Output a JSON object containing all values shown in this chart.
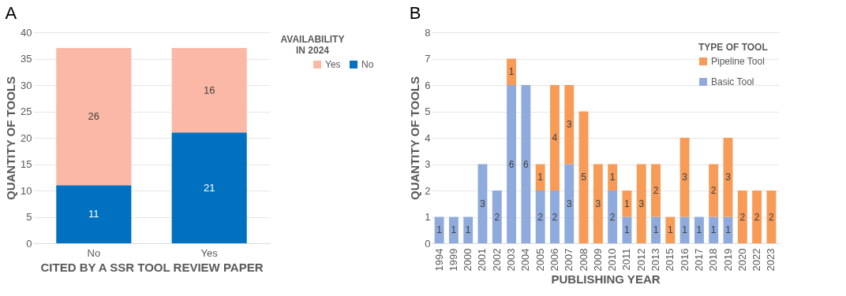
{
  "chart_data": [
    {
      "type": "bar",
      "title": "A",
      "xlabel": "CITED BY A SSR TOOL REVIEW PAPER",
      "ylabel": "QUANTITY OF TOOLS",
      "legend_title": "AVAILABILITY IN 2024",
      "categories": [
        "No",
        "Yes"
      ],
      "stacked": true,
      "series": [
        {
          "name": "No",
          "color": "#0070c0",
          "values": [
            11,
            21
          ]
        },
        {
          "name": "Yes",
          "color": "#fbb8a6",
          "values": [
            26,
            16
          ]
        }
      ],
      "ylim": [
        0,
        40
      ],
      "yticks": [
        0,
        5,
        10,
        15,
        20,
        25,
        30,
        35,
        40
      ],
      "grid": "y",
      "legend": "right",
      "data_labels": true
    },
    {
      "type": "bar",
      "title": "B",
      "xlabel": "PUBLISHING YEAR",
      "ylabel": "QUANTITY OF TOOLS",
      "legend_title": "TYPE OF TOOL",
      "categories": [
        "1994",
        "1999",
        "2000",
        "2001",
        "2002",
        "2003",
        "2004",
        "2005",
        "2006",
        "2007",
        "2008",
        "2009",
        "2010",
        "2011",
        "2012",
        "2013",
        "2015",
        "2016",
        "2017",
        "2018",
        "2019",
        "2020",
        "2022",
        "2023"
      ],
      "stacked": true,
      "series": [
        {
          "name": "Basic Tool",
          "color": "#8faadc",
          "values": [
            1,
            1,
            1,
            3,
            2,
            6,
            6,
            2,
            2,
            3,
            0,
            0,
            2,
            1,
            0,
            1,
            0,
            1,
            1,
            1,
            1,
            0,
            0,
            0
          ],
          "value_labels": [
            "1",
            "1",
            "1",
            "3",
            "2",
            "6",
            "6",
            "2",
            "2",
            "3",
            null,
            null,
            "2",
            "1",
            null,
            "1",
            null,
            "1",
            "1",
            "1",
            "1",
            null,
            null,
            null
          ]
        },
        {
          "name": "Pipeline Tool",
          "color": "#f79b57",
          "values": [
            0,
            0,
            0,
            0,
            0,
            1,
            0,
            1,
            4,
            3,
            5,
            3,
            1,
            1,
            3,
            2,
            1,
            3,
            0,
            2,
            3,
            2,
            2,
            2
          ],
          "value_labels": [
            null,
            null,
            null,
            null,
            null,
            "1",
            null,
            "1",
            "4",
            "3",
            "5",
            "3",
            "1",
            "1",
            "3",
            "2",
            "1",
            "3",
            null,
            "2",
            "3",
            "2",
            "2",
            "2"
          ]
        }
      ],
      "ylim": [
        0,
        8
      ],
      "yticks": [
        0,
        1,
        2,
        3,
        4,
        5,
        6,
        7,
        8
      ],
      "grid": "y",
      "legend": "top right"
    }
  ]
}
